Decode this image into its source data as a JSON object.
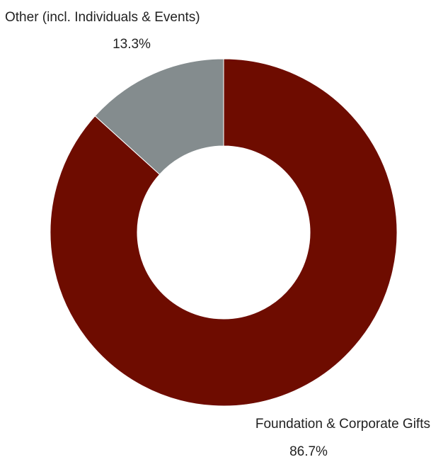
{
  "chart_data": {
    "type": "pie",
    "style": "donut",
    "title": "",
    "slices": [
      {
        "label": "Foundation & Corporate Gifts",
        "value": 86.7,
        "value_label": "86.7%",
        "color": "#6e0c00"
      },
      {
        "label": "Other (incl. Individuals & Events)",
        "value": 13.3,
        "value_label": "13.3%",
        "color": "#848c8e"
      }
    ],
    "start_angle": "12 o'clock",
    "direction": "clockwise",
    "legend": "none"
  }
}
